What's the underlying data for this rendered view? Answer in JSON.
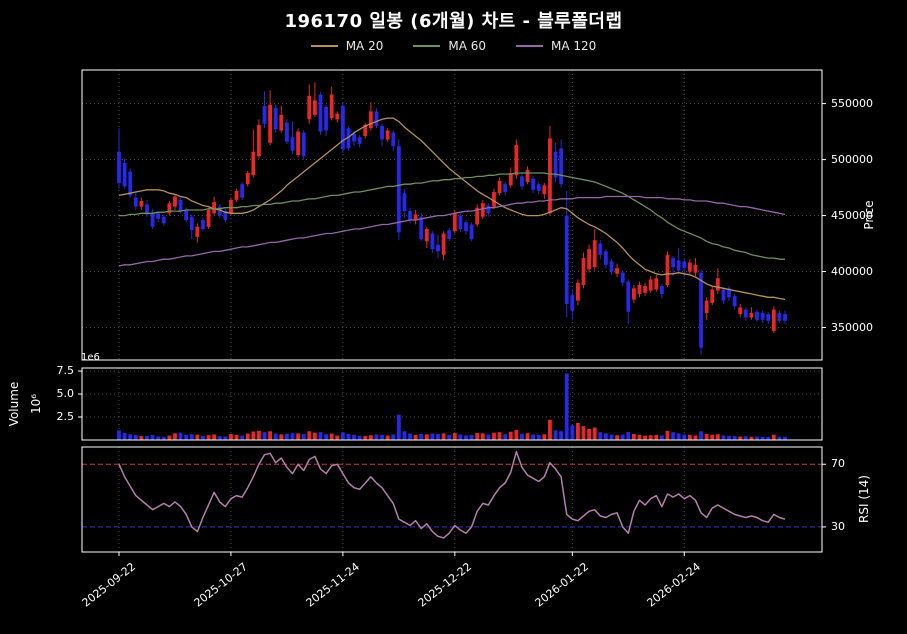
{
  "title": "196170 일봉 (6개월) 차트 - 블루폴더랩",
  "legend": [
    {
      "label": "MA 20",
      "color": "#b5915c"
    },
    {
      "label": "MA 60",
      "color": "#6e8f5e"
    },
    {
      "label": "MA 120",
      "color": "#9467a8"
    }
  ],
  "axes": {
    "price_label": "Price",
    "rsi_label": "RSI (14)",
    "volume_label": "Volume",
    "volume_pow_label": "10⁶",
    "volume_offset_label": "1e6"
  },
  "chart_data": {
    "type": "candlestick",
    "panels": [
      "price+ma",
      "volume",
      "rsi"
    ],
    "price_unit_krw": 1000,
    "ylim_price": [
      321,
      580
    ],
    "ylim_volume": [
      0,
      7.83
    ],
    "ylim_rsi": [
      14,
      81
    ],
    "price_tick_values": [
      550,
      500,
      450,
      400,
      350
    ],
    "price_tick_labels": [
      "550000",
      "500000",
      "450000",
      "400000",
      "350000"
    ],
    "volume_tick_values": [
      7.5,
      5.0,
      2.5
    ],
    "volume_tick_labels": [
      "7.5",
      "5.0",
      "2.5"
    ],
    "rsi_tick_values": [
      70,
      30
    ],
    "rsi_tick_labels": [
      "70",
      "30"
    ],
    "rsi_guides": {
      "overbought": 70,
      "oversold": 30
    },
    "x_tick_indices": [
      0,
      20,
      40,
      60,
      81,
      101
    ],
    "x_tick_labels": [
      "2025-09-22",
      "2025-10-27",
      "2025-11-24",
      "2025-12-22",
      "2026-01-22",
      "2026-02-24"
    ],
    "colors": {
      "up": "#e62828",
      "down": "#2828e6",
      "ma20": "#b5915c",
      "ma60": "#6e8f5e",
      "ma120": "#9467a8",
      "rsi": "#b57fad",
      "rsi_over": "#c03333",
      "rsi_under": "#3333c0",
      "grid": "#585858",
      "frame": "#ffffff",
      "bg": "#000000",
      "text": "#ffffff"
    },
    "dates": [
      "2025-09-22",
      "2025-09-23",
      "2025-09-24",
      "2025-09-25",
      "2025-09-26",
      "2025-09-29",
      "2025-09-30",
      "2025-10-01",
      "2025-10-02",
      "2025-10-10",
      "2025-10-13",
      "2025-10-14",
      "2025-10-15",
      "2025-10-16",
      "2025-10-17",
      "2025-10-20",
      "2025-10-21",
      "2025-10-22",
      "2025-10-23",
      "2025-10-24",
      "2025-10-27",
      "2025-10-28",
      "2025-10-29",
      "2025-10-30",
      "2025-10-31",
      "2025-11-03",
      "2025-11-04",
      "2025-11-05",
      "2025-11-06",
      "2025-11-07",
      "2025-11-10",
      "2025-11-11",
      "2025-11-12",
      "2025-11-13",
      "2025-11-14",
      "2025-11-17",
      "2025-11-18",
      "2025-11-19",
      "2025-11-20",
      "2025-11-21",
      "2025-11-24",
      "2025-11-25",
      "2025-11-26",
      "2025-11-27",
      "2025-11-28",
      "2025-12-01",
      "2025-12-02",
      "2025-12-03",
      "2025-12-04",
      "2025-12-05",
      "2025-12-08",
      "2025-12-09",
      "2025-12-10",
      "2025-12-11",
      "2025-12-12",
      "2025-12-15",
      "2025-12-16",
      "2025-12-17",
      "2025-12-18",
      "2025-12-19",
      "2025-12-22",
      "2025-12-23",
      "2025-12-24",
      "2025-12-26",
      "2025-12-29",
      "2025-12-30",
      "2025-12-31",
      "2026-01-02",
      "2026-01-05",
      "2026-01-06",
      "2026-01-07",
      "2026-01-08",
      "2026-01-09",
      "2026-01-12",
      "2026-01-13",
      "2026-01-14",
      "2026-01-15",
      "2026-01-16",
      "2026-01-19",
      "2026-01-20",
      "2026-01-21",
      "2026-01-22",
      "2026-01-23",
      "2026-01-26",
      "2026-01-27",
      "2026-01-28",
      "2026-01-29",
      "2026-01-30",
      "2026-02-02",
      "2026-02-03",
      "2026-02-04",
      "2026-02-05",
      "2026-02-06",
      "2026-02-09",
      "2026-02-10",
      "2026-02-11",
      "2026-02-12",
      "2026-02-13",
      "2026-02-19",
      "2026-02-20",
      "2026-02-23",
      "2026-02-24",
      "2026-02-25",
      "2026-02-26",
      "2026-02-27",
      "2026-03-03",
      "2026-03-04",
      "2026-03-05",
      "2026-03-06",
      "2026-03-09",
      "2026-03-10",
      "2026-03-11",
      "2026-03-12",
      "2026-03-13",
      "2026-03-16",
      "2026-03-17",
      "2026-03-18",
      "2026-03-19",
      "2026-03-20",
      "2026-03-23"
    ],
    "ohlc": [
      [
        507,
        528,
        474,
        479
      ],
      [
        497,
        501,
        474,
        476
      ],
      [
        489,
        492,
        466,
        468
      ],
      [
        466,
        472,
        455,
        458
      ],
      [
        458,
        466,
        455,
        463
      ],
      [
        460,
        464,
        449,
        451
      ],
      [
        452,
        456,
        438,
        440
      ],
      [
        452,
        454,
        444,
        447
      ],
      [
        449,
        451,
        441,
        443
      ],
      [
        452,
        463,
        450,
        461
      ],
      [
        458,
        469,
        455,
        467
      ],
      [
        464,
        466,
        452,
        454
      ],
      [
        455,
        457,
        444,
        446
      ],
      [
        449,
        451,
        429,
        437
      ],
      [
        431,
        443,
        426,
        440
      ],
      [
        446,
        448,
        436,
        438
      ],
      [
        440,
        457,
        438,
        455
      ],
      [
        452,
        467,
        450,
        462
      ],
      [
        458,
        460,
        448,
        450
      ],
      [
        454,
        456,
        444,
        446
      ],
      [
        452,
        466,
        450,
        464
      ],
      [
        464,
        474,
        462,
        472
      ],
      [
        478,
        480,
        464,
        466
      ],
      [
        478,
        490,
        476,
        488
      ],
      [
        486,
        527,
        484,
        507
      ],
      [
        503,
        536,
        501,
        531
      ],
      [
        548,
        561,
        528,
        532
      ],
      [
        515,
        562,
        513,
        549
      ],
      [
        546,
        549,
        524,
        527
      ],
      [
        526,
        548,
        524,
        540
      ],
      [
        533,
        536,
        514,
        516
      ],
      [
        520,
        534,
        505,
        508
      ],
      [
        504,
        528,
        502,
        525
      ],
      [
        524,
        526,
        500,
        503
      ],
      [
        536,
        567,
        532,
        557
      ],
      [
        540,
        569,
        538,
        553
      ],
      [
        558,
        560,
        522,
        525
      ],
      [
        547,
        549,
        521,
        526
      ],
      [
        537,
        565,
        535,
        558
      ],
      [
        536,
        543,
        533,
        541
      ],
      [
        548,
        551,
        506,
        509
      ],
      [
        528,
        530,
        508,
        510
      ],
      [
        523,
        525,
        512,
        516
      ],
      [
        520,
        522,
        511,
        514
      ],
      [
        521,
        533,
        519,
        531
      ],
      [
        528,
        551,
        526,
        543
      ],
      [
        543,
        546,
        528,
        530
      ],
      [
        530,
        532,
        512,
        518
      ],
      [
        518,
        528,
        516,
        526
      ],
      [
        524,
        526,
        508,
        512
      ],
      [
        512,
        518,
        428,
        435
      ],
      [
        470,
        474,
        448,
        454
      ],
      [
        454,
        457,
        443,
        446
      ],
      [
        446,
        455,
        442,
        451
      ],
      [
        449,
        452,
        427,
        429
      ],
      [
        427,
        440,
        421,
        438
      ],
      [
        434,
        436,
        417,
        420
      ],
      [
        424,
        433,
        412,
        418
      ],
      [
        415,
        436,
        410,
        434
      ],
      [
        437,
        439,
        427,
        429
      ],
      [
        436,
        455,
        434,
        452
      ],
      [
        450,
        452,
        435,
        438
      ],
      [
        444,
        446,
        433,
        436
      ],
      [
        442,
        444,
        427,
        429
      ],
      [
        442,
        460,
        440,
        457
      ],
      [
        449,
        464,
        447,
        461
      ],
      [
        459,
        461,
        449,
        452
      ],
      [
        458,
        474,
        456,
        471
      ],
      [
        470,
        484,
        468,
        481
      ],
      [
        478,
        480,
        468,
        471
      ],
      [
        477,
        493,
        475,
        488
      ],
      [
        486,
        518,
        483,
        513
      ],
      [
        485,
        488,
        473,
        476
      ],
      [
        480,
        494,
        478,
        491
      ],
      [
        483,
        485,
        470,
        473
      ],
      [
        478,
        480,
        469,
        472
      ],
      [
        469,
        479,
        465,
        477
      ],
      [
        452,
        530,
        450,
        519
      ],
      [
        507,
        515,
        480,
        484
      ],
      [
        510,
        518,
        475,
        478
      ],
      [
        450,
        472,
        359,
        371
      ],
      [
        379,
        384,
        357,
        365
      ],
      [
        374,
        393,
        370,
        390
      ],
      [
        388,
        417,
        385,
        412
      ],
      [
        402,
        424,
        399,
        420
      ],
      [
        404,
        438,
        401,
        428
      ],
      [
        425,
        428,
        411,
        415
      ],
      [
        418,
        420,
        403,
        406
      ],
      [
        409,
        411,
        397,
        400
      ],
      [
        398,
        407,
        395,
        403
      ],
      [
        399,
        401,
        387,
        390
      ],
      [
        391,
        393,
        353,
        364
      ],
      [
        375,
        388,
        372,
        385
      ],
      [
        380,
        391,
        377,
        388
      ],
      [
        381,
        390,
        378,
        387
      ],
      [
        383,
        396,
        381,
        393
      ],
      [
        384,
        397,
        382,
        394
      ],
      [
        387,
        389,
        376,
        380
      ],
      [
        388,
        418,
        386,
        415
      ],
      [
        412,
        414,
        396,
        404
      ],
      [
        410,
        421,
        398,
        401
      ],
      [
        409,
        411,
        395,
        403
      ],
      [
        400,
        411,
        397,
        408
      ],
      [
        399,
        412,
        396,
        406
      ],
      [
        399,
        402,
        326,
        332
      ],
      [
        363,
        377,
        357,
        374
      ],
      [
        372,
        387,
        370,
        384
      ],
      [
        383,
        403,
        380,
        394
      ],
      [
        384,
        386,
        371,
        374
      ],
      [
        385,
        387,
        374,
        377
      ],
      [
        378,
        380,
        366,
        369
      ],
      [
        362,
        371,
        359,
        368
      ],
      [
        366,
        368,
        356,
        359
      ],
      [
        359,
        368,
        357,
        363
      ],
      [
        364,
        366,
        355,
        357
      ],
      [
        363,
        365,
        354,
        357
      ],
      [
        362,
        364,
        353,
        356
      ],
      [
        347,
        369,
        345,
        366
      ],
      [
        363,
        365,
        354,
        356
      ],
      [
        362,
        365,
        353,
        356
      ]
    ],
    "volume_millions": [
      1.05,
      0.78,
      0.62,
      0.55,
      0.42,
      0.45,
      0.55,
      0.38,
      0.35,
      0.48,
      0.73,
      0.8,
      0.55,
      0.62,
      0.58,
      0.45,
      0.52,
      0.6,
      0.42,
      0.38,
      0.65,
      0.55,
      0.48,
      0.7,
      0.92,
      1.0,
      0.85,
      0.95,
      0.7,
      0.62,
      0.68,
      0.75,
      0.72,
      0.65,
      0.95,
      0.8,
      0.85,
      0.62,
      0.7,
      0.48,
      0.82,
      0.65,
      0.55,
      0.48,
      0.45,
      0.52,
      0.58,
      0.55,
      0.48,
      0.6,
      2.75,
      0.95,
      0.7,
      0.55,
      0.68,
      0.62,
      0.7,
      0.65,
      0.72,
      0.55,
      0.75,
      0.6,
      0.5,
      0.55,
      0.78,
      0.72,
      0.58,
      0.8,
      0.85,
      0.62,
      0.9,
      1.1,
      0.68,
      0.75,
      0.6,
      0.55,
      0.62,
      2.2,
      1.05,
      0.95,
      7.25,
      1.6,
      1.85,
      1.5,
      1.2,
      1.35,
      0.85,
      0.72,
      0.6,
      0.52,
      0.58,
      0.88,
      0.65,
      0.55,
      0.48,
      0.52,
      0.55,
      0.5,
      1.0,
      0.85,
      0.72,
      0.6,
      0.55,
      0.5,
      0.95,
      0.65,
      0.58,
      0.62,
      0.5,
      0.45,
      0.42,
      0.38,
      0.4,
      0.35,
      0.38,
      0.35,
      0.33,
      0.58,
      0.36,
      0.34
    ],
    "ma20": [
      468,
      469,
      470,
      471,
      472,
      473,
      473,
      473,
      472,
      470,
      469,
      467,
      466,
      463,
      461,
      459,
      458,
      456,
      455,
      453,
      452,
      452,
      452,
      453,
      455,
      458,
      461,
      464,
      468,
      472,
      477,
      481,
      485,
      489,
      493,
      497,
      501,
      505,
      509,
      513,
      517,
      520,
      524,
      527,
      530,
      532,
      534,
      536,
      537,
      537,
      534,
      529,
      525,
      521,
      517,
      512,
      507,
      502,
      497,
      492,
      488,
      484,
      480,
      476,
      472,
      469,
      466,
      463,
      460,
      457,
      455,
      453,
      451,
      450,
      450,
      450,
      451,
      453,
      455,
      457,
      456,
      452,
      448,
      445,
      442,
      440,
      437,
      434,
      430,
      426,
      421,
      415,
      410,
      406,
      402,
      400,
      398,
      397,
      398,
      398,
      399,
      398,
      397,
      395,
      392,
      389,
      387,
      386,
      385,
      384,
      383,
      382,
      381,
      380,
      379,
      378,
      377,
      377,
      376,
      375
    ],
    "ma60": [
      450,
      450,
      451,
      451,
      452,
      452,
      452,
      453,
      453,
      454,
      454,
      454,
      455,
      455,
      455,
      455,
      456,
      456,
      456,
      457,
      457,
      457,
      458,
      458,
      459,
      459,
      460,
      460,
      461,
      461,
      462,
      463,
      463,
      464,
      465,
      465,
      466,
      467,
      468,
      468,
      469,
      470,
      471,
      471,
      472,
      473,
      474,
      475,
      476,
      476,
      477,
      478,
      478,
      479,
      479,
      480,
      481,
      481,
      482,
      482,
      483,
      483,
      484,
      484,
      485,
      485,
      486,
      486,
      487,
      487,
      487,
      488,
      488,
      488,
      488,
      488,
      488,
      487,
      487,
      486,
      485,
      484,
      483,
      482,
      481,
      480,
      478,
      476,
      474,
      472,
      470,
      467,
      464,
      461,
      458,
      455,
      451,
      448,
      444,
      441,
      438,
      436,
      434,
      432,
      430,
      427,
      425,
      424,
      422,
      421,
      419,
      418,
      417,
      415,
      414,
      413,
      412,
      412,
      411,
      411
    ],
    "ma120": [
      405,
      406,
      406,
      407,
      408,
      409,
      409,
      410,
      411,
      411,
      412,
      413,
      414,
      414,
      415,
      416,
      417,
      418,
      418,
      419,
      420,
      421,
      422,
      422,
      423,
      424,
      425,
      426,
      426,
      427,
      428,
      429,
      430,
      430,
      431,
      432,
      433,
      434,
      434,
      435,
      436,
      437,
      438,
      438,
      439,
      440,
      441,
      442,
      442,
      443,
      444,
      445,
      446,
      446,
      447,
      448,
      449,
      450,
      450,
      451,
      452,
      453,
      454,
      454,
      455,
      456,
      457,
      457,
      458,
      459,
      460,
      461,
      461,
      462,
      462,
      463,
      463,
      464,
      464,
      465,
      465,
      465,
      466,
      466,
      466,
      466,
      466,
      467,
      467,
      467,
      467,
      467,
      467,
      467,
      466,
      466,
      466,
      466,
      465,
      465,
      465,
      464,
      464,
      463,
      463,
      463,
      462,
      461,
      461,
      460,
      459,
      458,
      458,
      457,
      456,
      455,
      454,
      453,
      452,
      451
    ],
    "rsi14": [
      70,
      62,
      56,
      50,
      47,
      44,
      41,
      43,
      45,
      43,
      46,
      43,
      38,
      30,
      27,
      36,
      44,
      52,
      46,
      43,
      48,
      50,
      49,
      55,
      62,
      70,
      76,
      77,
      71,
      74,
      68,
      64,
      70,
      66,
      73,
      75,
      67,
      64,
      69,
      70,
      64,
      58,
      55,
      54,
      58,
      62,
      58,
      55,
      50,
      45,
      35,
      33,
      31,
      34,
      29,
      32,
      27,
      24,
      23,
      26,
      31,
      28,
      26,
      30,
      40,
      45,
      44,
      50,
      55,
      58,
      65,
      78,
      68,
      63,
      61,
      59,
      62,
      71,
      67,
      62,
      38,
      35,
      34,
      37,
      40,
      41,
      37,
      36,
      38,
      39,
      30,
      26,
      40,
      47,
      44,
      48,
      50,
      43,
      51,
      49,
      51,
      48,
      50,
      47,
      39,
      36,
      42,
      44,
      42,
      40,
      38,
      37,
      36,
      37,
      36,
      34,
      33,
      38,
      36,
      35
    ]
  }
}
